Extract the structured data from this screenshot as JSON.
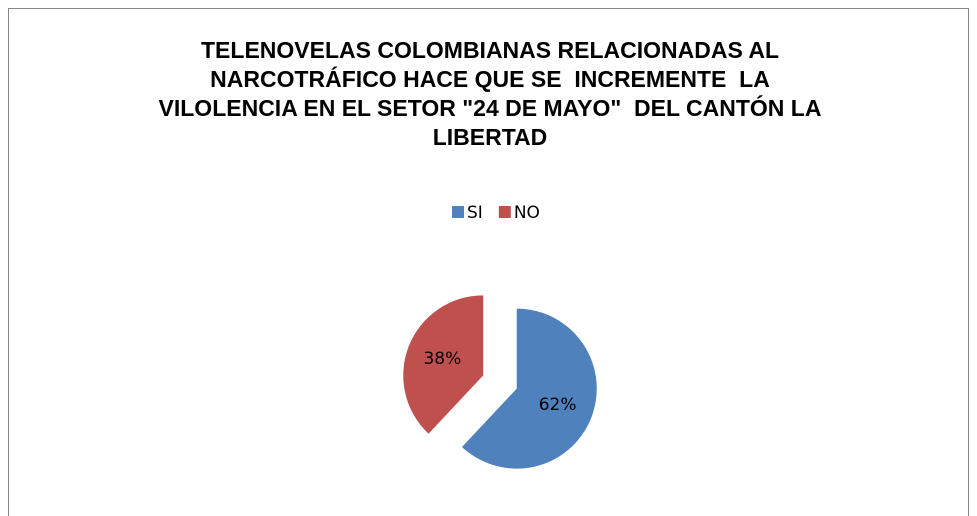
{
  "chart_data": {
    "type": "pie",
    "title": "TELENOVELAS COLOMBIANAS RELACIONADAS AL NARCOTRÁFICO HACE QUE SE  INCREMENTE  LA VILOLENCIA EN EL SETOR \"24 DE MAYO\"  DEL CANTÓN LA LIBERTAD",
    "categories": [
      "SI",
      "NO"
    ],
    "values": [
      62,
      38
    ],
    "value_labels": [
      "62%",
      "38%"
    ],
    "colors": [
      "#4f81bd",
      "#c0504d"
    ],
    "legend": "top"
  }
}
